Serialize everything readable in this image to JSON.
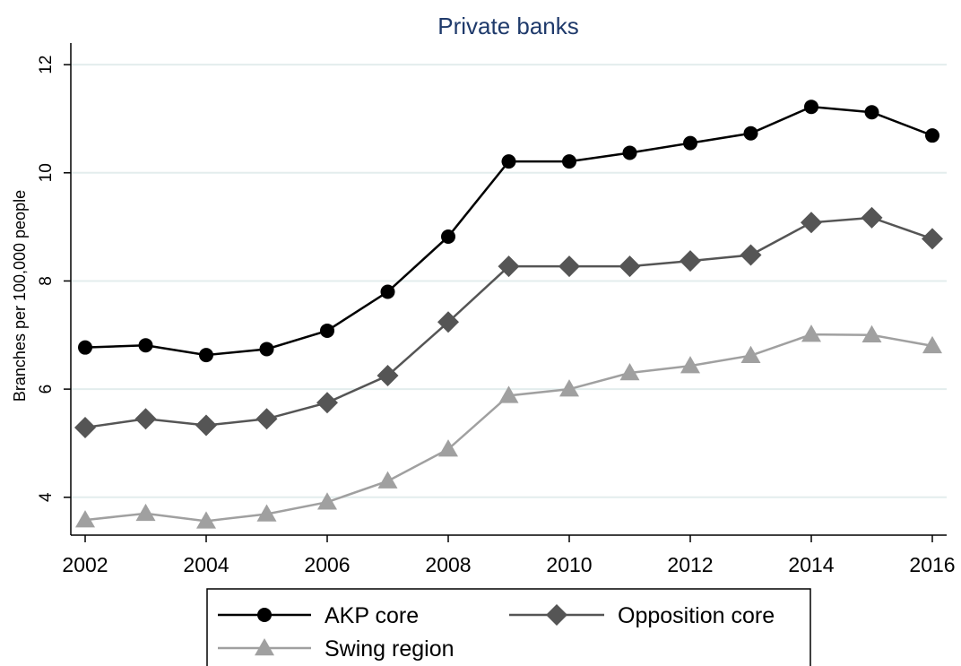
{
  "chart_data": {
    "type": "line",
    "title": "Private banks",
    "xlabel": "",
    "ylabel": "Branches per 100,000 people",
    "x": [
      2002,
      2003,
      2004,
      2005,
      2006,
      2007,
      2008,
      2009,
      2010,
      2011,
      2012,
      2013,
      2014,
      2015,
      2016
    ],
    "xticks": [
      "2002",
      "2004",
      "2006",
      "2008",
      "2010",
      "2012",
      "2014",
      "2016"
    ],
    "yticks": [
      "4",
      "6",
      "8",
      "10",
      "12"
    ],
    "xlim": [
      2002,
      2016
    ],
    "ylim": [
      3.3,
      12.4
    ],
    "grid": true,
    "legend_position": "bottom",
    "series": [
      {
        "name": "AKP core",
        "marker": "circle",
        "color": "#000000",
        "values": [
          6.77,
          6.81,
          6.63,
          6.74,
          7.08,
          7.8,
          8.82,
          10.21,
          10.21,
          10.37,
          10.55,
          10.73,
          11.22,
          11.12,
          10.69
        ]
      },
      {
        "name": "Opposition core",
        "marker": "diamond",
        "color": "#555555",
        "values": [
          5.29,
          5.45,
          5.33,
          5.45,
          5.75,
          6.25,
          7.24,
          8.27,
          8.27,
          8.27,
          8.37,
          8.48,
          9.08,
          9.17,
          8.78
        ]
      },
      {
        "name": "Swing region",
        "marker": "triangle",
        "color": "#a0a0a0",
        "values": [
          3.58,
          3.7,
          3.56,
          3.69,
          3.91,
          4.3,
          4.89,
          5.88,
          6.0,
          6.3,
          6.43,
          6.62,
          7.01,
          7.0,
          6.8
        ]
      }
    ]
  }
}
